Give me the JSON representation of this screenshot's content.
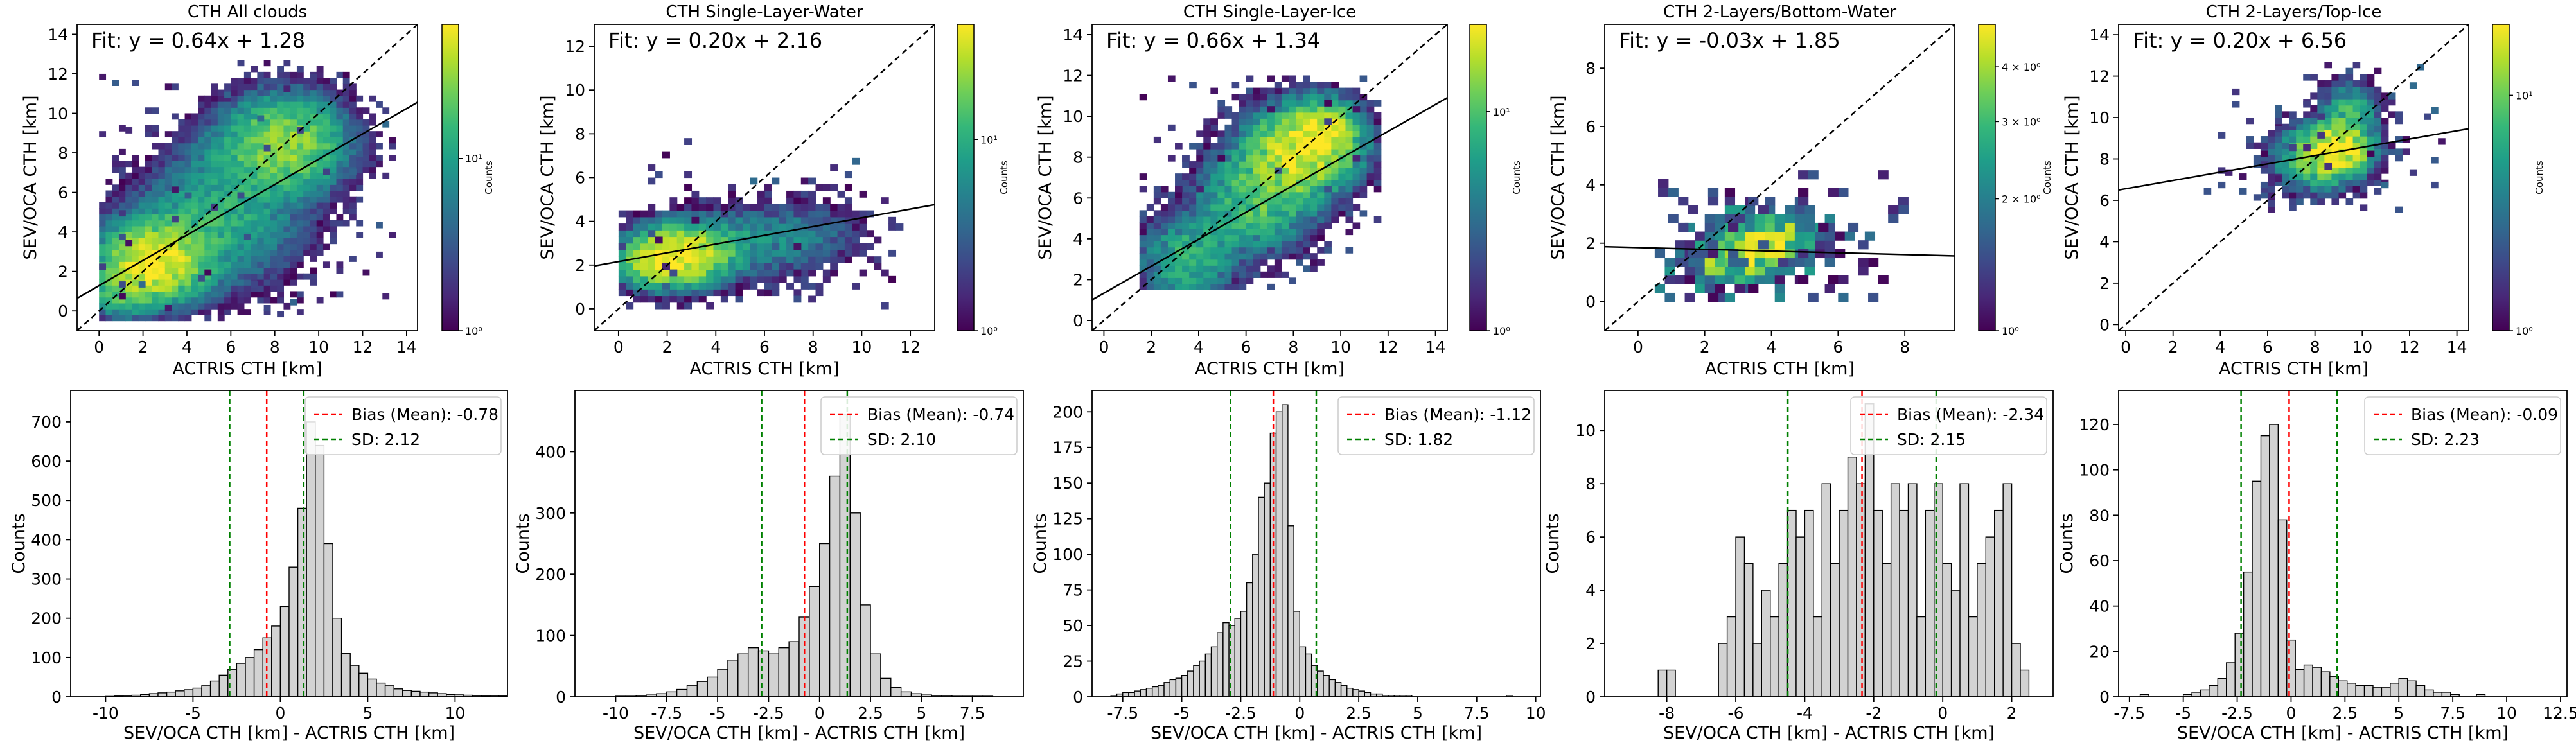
{
  "figure": {
    "colors": {
      "axis": "#000000",
      "identity_line": "#000000",
      "fit_line": "#000000",
      "hist_fill": "#d3d3d3",
      "hist_edge": "#000000",
      "bias_line": "#ff0000",
      "sd_line": "#008000",
      "viridis": [
        "#440154",
        "#482878",
        "#3e4989",
        "#31688e",
        "#26828e",
        "#1f9e89",
        "#35b779",
        "#6ece58",
        "#b5de2b",
        "#fde725"
      ]
    },
    "colorbar_label": "Counts",
    "scatter_xlabel": "ACTRIS CTH [km]",
    "scatter_ylabel": "SEV/OCA CTH [km]",
    "hist_xlabel": "SEV/OCA CTH [km] - ACTRIS CTH [km]",
    "hist_ylabel": "Counts"
  },
  "chart_data": [
    {
      "type": "heatmap",
      "panel": "scatter-all-clouds",
      "title": "CTH All clouds",
      "annotation": "Fit: y = 0.64x + 1.28",
      "fit": {
        "slope": 0.64,
        "intercept": 1.28
      },
      "xlim": [
        -1,
        14.5
      ],
      "ylim": [
        -1,
        14.5
      ],
      "xticks": [
        0,
        2,
        4,
        6,
        8,
        10,
        12,
        14
      ],
      "yticks": [
        0,
        2,
        4,
        6,
        8,
        10,
        12,
        14
      ],
      "identity_line": true,
      "colorbar": {
        "scale": "log",
        "ticks": [
          {
            "v": 1,
            "label": "10⁰"
          },
          {
            "v": 10,
            "label": "10¹"
          }
        ],
        "vmin": 1,
        "vmax": 60
      },
      "density_blobs": [
        [
          2.5,
          2.5,
          1.3,
          1.1,
          55
        ],
        [
          8.5,
          8.5,
          1.6,
          1.4,
          30
        ],
        [
          5.0,
          4.0,
          2.4,
          1.8,
          10
        ],
        [
          1.0,
          1.0,
          1.0,
          0.8,
          14
        ],
        [
          6.0,
          6.5,
          1.8,
          1.8,
          7
        ]
      ],
      "data_range": {
        "x": [
          0,
          13.5
        ],
        "y": [
          -0.5,
          12.5
        ]
      },
      "sparse_count": 40
    },
    {
      "type": "heatmap",
      "panel": "scatter-single-layer-water",
      "title": "CTH Single-Layer-Water",
      "annotation": "Fit: y = 0.20x + 2.16",
      "fit": {
        "slope": 0.2,
        "intercept": 2.16
      },
      "xlim": [
        -1,
        13
      ],
      "ylim": [
        -1,
        13
      ],
      "xticks": [
        0,
        2,
        4,
        6,
        8,
        10,
        12
      ],
      "yticks": [
        0,
        2,
        4,
        6,
        8,
        10,
        12
      ],
      "identity_line": true,
      "colorbar": {
        "scale": "log",
        "ticks": [
          {
            "v": 1,
            "label": "10⁰"
          },
          {
            "v": 10,
            "label": "10¹"
          }
        ],
        "vmin": 1,
        "vmax": 40
      },
      "density_blobs": [
        [
          2.5,
          2.5,
          1.2,
          0.8,
          35
        ],
        [
          1.5,
          2.0,
          1.0,
          0.6,
          15
        ],
        [
          5.0,
          3.0,
          2.0,
          1.0,
          6
        ],
        [
          8.0,
          3.5,
          1.5,
          1.0,
          3
        ]
      ],
      "data_range": {
        "x": [
          0,
          11.5
        ],
        "y": [
          0,
          8
        ]
      },
      "sparse_count": 30
    },
    {
      "type": "heatmap",
      "panel": "scatter-single-layer-ice",
      "title": "CTH Single-Layer-Ice",
      "annotation": "Fit: y = 0.66x + 1.34",
      "fit": {
        "slope": 0.66,
        "intercept": 1.34
      },
      "xlim": [
        -0.5,
        14.5
      ],
      "ylim": [
        -0.5,
        14.5
      ],
      "xticks": [
        0,
        2,
        4,
        6,
        8,
        10,
        12,
        14
      ],
      "yticks": [
        0,
        2,
        4,
        6,
        8,
        10,
        12,
        14
      ],
      "identity_line": true,
      "colorbar": {
        "scale": "log",
        "ticks": [
          {
            "v": 1,
            "label": "10⁰"
          },
          {
            "v": 10,
            "label": "10¹"
          }
        ],
        "vmin": 1,
        "vmax": 25
      },
      "density_blobs": [
        [
          8.5,
          8.5,
          1.4,
          1.3,
          22
        ],
        [
          6.5,
          6.0,
          1.6,
          1.6,
          10
        ],
        [
          3.5,
          3.0,
          1.3,
          1.3,
          8
        ],
        [
          9.5,
          9.5,
          0.8,
          0.8,
          10
        ]
      ],
      "data_range": {
        "x": [
          1.5,
          11.5
        ],
        "y": [
          1.5,
          12
        ]
      },
      "sparse_count": 35
    },
    {
      "type": "heatmap",
      "panel": "scatter-2-layers-bottom-water",
      "title": "CTH 2-Layers/Bottom-Water",
      "annotation": "Fit: y = -0.03x + 1.85",
      "fit": {
        "slope": -0.03,
        "intercept": 1.85
      },
      "xlim": [
        -1,
        9.5
      ],
      "ylim": [
        -1,
        9.5
      ],
      "xticks": [
        0,
        2,
        4,
        6,
        8
      ],
      "yticks": [
        0,
        2,
        4,
        6,
        8
      ],
      "identity_line": true,
      "colorbar": {
        "scale": "log",
        "ticks": [
          {
            "v": 1,
            "label": "10⁰"
          },
          {
            "v": 2,
            "label": "2 × 10⁰"
          },
          {
            "v": 3,
            "label": "3 × 10⁰"
          },
          {
            "v": 4,
            "label": "4 × 10⁰"
          }
        ],
        "vmin": 1,
        "vmax": 5
      },
      "density_blobs": [
        [
          3.5,
          1.8,
          1.2,
          0.6,
          4
        ],
        [
          2.5,
          1.0,
          1.0,
          0.6,
          2
        ],
        [
          4.5,
          2.5,
          1.0,
          0.6,
          2
        ]
      ],
      "data_range": {
        "x": [
          0.5,
          8
        ],
        "y": [
          0,
          4.5
        ]
      },
      "sparse_count": 55
    },
    {
      "type": "heatmap",
      "panel": "scatter-2-layers-top-ice",
      "title": "CTH 2-Layers/Top-Ice",
      "annotation": "Fit: y = 0.20x + 6.56",
      "fit": {
        "slope": 0.2,
        "intercept": 6.56
      },
      "xlim": [
        -0.3,
        14.5
      ],
      "ylim": [
        -0.3,
        14.5
      ],
      "xticks": [
        0,
        2,
        4,
        6,
        8,
        10,
        12,
        14
      ],
      "yticks": [
        0,
        2,
        4,
        6,
        8,
        10,
        12,
        14
      ],
      "identity_line": true,
      "colorbar": {
        "scale": "log",
        "ticks": [
          {
            "v": 1,
            "label": "10⁰"
          },
          {
            "v": 10,
            "label": "10¹"
          }
        ],
        "vmin": 1,
        "vmax": 20
      },
      "density_blobs": [
        [
          9.0,
          8.5,
          0.9,
          0.8,
          18
        ],
        [
          8.0,
          8.0,
          1.2,
          1.0,
          8
        ],
        [
          9.5,
          10.5,
          0.8,
          0.8,
          6
        ]
      ],
      "data_range": {
        "x": [
          3,
          13.5
        ],
        "y": [
          5.5,
          12.5
        ]
      },
      "sparse_count": 35
    },
    {
      "type": "bar",
      "panel": "hist-all-clouds",
      "bins_start": -10,
      "bin_width": 0.5,
      "counts": [
        1,
        2,
        3,
        4,
        6,
        8,
        10,
        12,
        15,
        18,
        22,
        28,
        40,
        55,
        70,
        85,
        100,
        120,
        150,
        180,
        230,
        330,
        480,
        700,
        640,
        390,
        200,
        110,
        80,
        60,
        45,
        35,
        28,
        20,
        16,
        14,
        12,
        10,
        8,
        6,
        5,
        4,
        3,
        2,
        3,
        2,
        1,
        1
      ],
      "xlim": [
        -12,
        13
      ],
      "ylim": [
        0,
        780
      ],
      "xticks": [
        -10,
        -5,
        0,
        5,
        10
      ],
      "yticks": [
        0,
        100,
        200,
        300,
        400,
        500,
        600,
        700
      ],
      "bias": -0.78,
      "sd_lines": [
        -2.9,
        1.34
      ],
      "legend": [
        "Bias (Mean): -0.78",
        "SD: 2.12"
      ]
    },
    {
      "type": "bar",
      "panel": "hist-single-layer-water",
      "bins_start": -10,
      "bin_width": 0.5,
      "counts": [
        1,
        1,
        2,
        3,
        5,
        8,
        12,
        18,
        25,
        32,
        45,
        60,
        70,
        80,
        75,
        70,
        80,
        90,
        130,
        180,
        250,
        360,
        460,
        300,
        150,
        70,
        30,
        15,
        8,
        5,
        3,
        2,
        2,
        1,
        1,
        1,
        1,
        0,
        0,
        0,
        0,
        1
      ],
      "xlim": [
        -12,
        10
      ],
      "ylim": [
        0,
        500
      ],
      "xticks": [
        -10,
        -7.5,
        -5,
        -2.5,
        0,
        2.5,
        5,
        7.5
      ],
      "yticks": [
        0,
        100,
        200,
        300,
        400
      ],
      "bias": -0.74,
      "sd_lines": [
        -2.84,
        1.36
      ],
      "legend": [
        "Bias (Mean): -0.74",
        "SD: 2.10"
      ]
    },
    {
      "type": "bar",
      "panel": "hist-single-layer-ice",
      "bins_start": -8,
      "bin_width": 0.25,
      "counts": [
        1,
        2,
        3,
        3,
        4,
        5,
        6,
        7,
        8,
        10,
        12,
        13,
        15,
        18,
        22,
        25,
        30,
        35,
        45,
        52,
        50,
        55,
        60,
        80,
        100,
        140,
        150,
        185,
        200,
        205,
        120,
        60,
        35,
        30,
        22,
        18,
        15,
        12,
        10,
        8,
        6,
        5,
        4,
        3,
        2,
        2,
        1,
        1,
        1,
        1,
        1,
        0,
        0,
        0,
        0,
        0,
        0,
        0,
        0,
        0,
        0,
        0,
        0,
        0,
        0,
        0,
        0,
        1
      ],
      "xlim": [
        -8.8,
        10.2
      ],
      "ylim": [
        0,
        215
      ],
      "xticks": [
        -7.5,
        -5,
        -2.5,
        0,
        2.5,
        5,
        7.5,
        10
      ],
      "yticks": [
        0,
        25,
        50,
        75,
        100,
        125,
        150,
        175,
        200
      ],
      "bias": -1.12,
      "sd_lines": [
        -2.94,
        0.7
      ],
      "legend": [
        "Bias (Mean): -1.12",
        "SD: 1.82"
      ]
    },
    {
      "type": "bar",
      "panel": "hist-2-layers-bottom-water",
      "bins_start": -8.25,
      "bin_width": 0.25,
      "counts": [
        1,
        1,
        0,
        0,
        0,
        0,
        0,
        2,
        3,
        6,
        5,
        2,
        4,
        3,
        5,
        7,
        6,
        7,
        3,
        8,
        5,
        7,
        9,
        8,
        11,
        7,
        5,
        8,
        7,
        8,
        3,
        7,
        8,
        5,
        4,
        8,
        3,
        5,
        6,
        7,
        8,
        2,
        1
      ],
      "xlim": [
        -9.8,
        3.2
      ],
      "ylim": [
        0,
        11.5
      ],
      "xticks": [
        -8,
        -6,
        -4,
        -2,
        0,
        2
      ],
      "yticks": [
        0,
        2,
        4,
        6,
        8,
        10
      ],
      "bias": -2.34,
      "sd_lines": [
        -4.49,
        -0.19
      ],
      "legend": [
        "Bias (Mean): -2.34",
        "SD: 2.15"
      ]
    },
    {
      "type": "bar",
      "panel": "hist-2-layers-top-ice",
      "bins_start": -7,
      "bin_width": 0.4,
      "counts": [
        1,
        0,
        0,
        0,
        0,
        1,
        2,
        3,
        5,
        8,
        15,
        28,
        55,
        95,
        115,
        120,
        78,
        25,
        12,
        14,
        13,
        11,
        9,
        7,
        6,
        5,
        5,
        4,
        4,
        6,
        8,
        7,
        5,
        3,
        2,
        2,
        1,
        0,
        0,
        1
      ],
      "xlim": [
        -8,
        12.8
      ],
      "ylim": [
        0,
        135
      ],
      "xticks": [
        -7.5,
        -5,
        -2.5,
        0,
        2.5,
        5,
        7.5,
        10,
        12.5
      ],
      "yticks": [
        0,
        20,
        40,
        60,
        80,
        100,
        120
      ],
      "bias": -0.09,
      "sd_lines": [
        -2.32,
        2.14
      ],
      "legend": [
        "Bias (Mean): -0.09",
        "SD: 2.23"
      ]
    }
  ]
}
